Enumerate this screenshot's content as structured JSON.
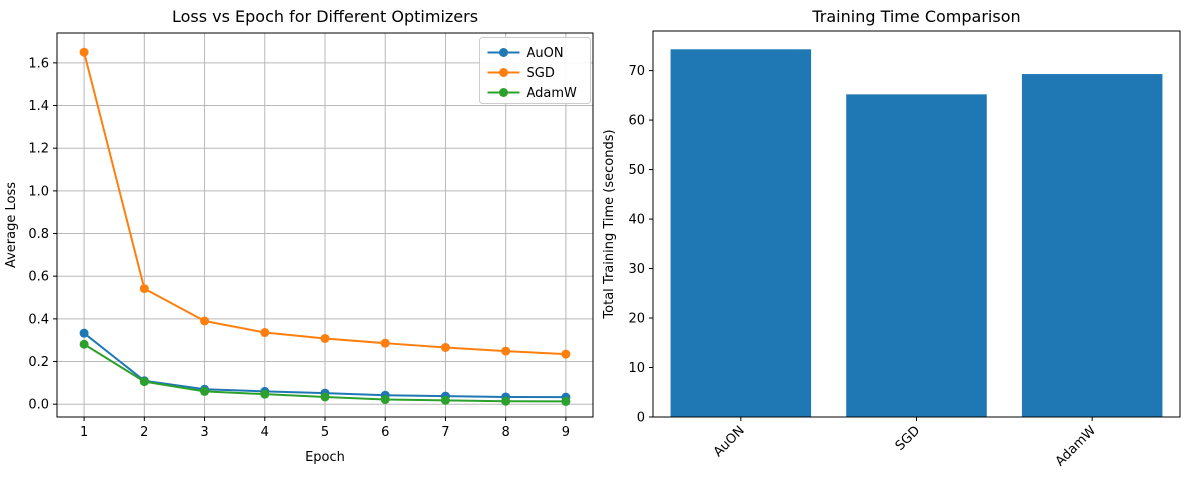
{
  "figure": {
    "background": "#ffffff",
    "text_color": "#000000",
    "grid_color": "#b8b8b8",
    "spine_color": "#000000"
  },
  "chart_data": [
    {
      "id": "loss",
      "type": "line",
      "title": "Loss vs Epoch for Different Optimizers",
      "xlabel": "Epoch",
      "ylabel": "Average Loss",
      "x": [
        1,
        2,
        3,
        4,
        5,
        6,
        7,
        8,
        9
      ],
      "xticks": [
        "1",
        "2",
        "3",
        "4",
        "5",
        "6",
        "7",
        "8",
        "9"
      ],
      "yticks": [
        0.0,
        0.2,
        0.4,
        0.6,
        0.8,
        1.0,
        1.2,
        1.4,
        1.6
      ],
      "xlim": [
        0.55,
        9.45
      ],
      "ylim": [
        -0.06,
        1.74
      ],
      "grid": true,
      "legend_position": "upper right",
      "series": [
        {
          "name": "AuON",
          "color": "#1f77b4",
          "values": [
            0.333,
            0.11,
            0.07,
            0.06,
            0.052,
            0.042,
            0.038,
            0.034,
            0.033
          ]
        },
        {
          "name": "SGD",
          "color": "#ff7f0e",
          "values": [
            1.65,
            0.542,
            0.39,
            0.336,
            0.308,
            0.286,
            0.266,
            0.249,
            0.235
          ]
        },
        {
          "name": "AdamW",
          "color": "#2ca02c",
          "values": [
            0.281,
            0.106,
            0.06,
            0.047,
            0.034,
            0.022,
            0.018,
            0.014,
            0.013
          ]
        }
      ]
    },
    {
      "id": "time",
      "type": "bar",
      "title": "Training Time Comparison",
      "xlabel": "",
      "ylabel": "Total Training Time (seconds)",
      "categories": [
        "AuON",
        "SGD",
        "AdamW"
      ],
      "values": [
        74.3,
        65.2,
        69.3
      ],
      "bar_color": "#1f77b4",
      "yticks": [
        0,
        10,
        20,
        30,
        40,
        50,
        60,
        70
      ],
      "ylim": [
        0,
        78
      ],
      "grid": false,
      "xtick_rotation": 45
    }
  ]
}
